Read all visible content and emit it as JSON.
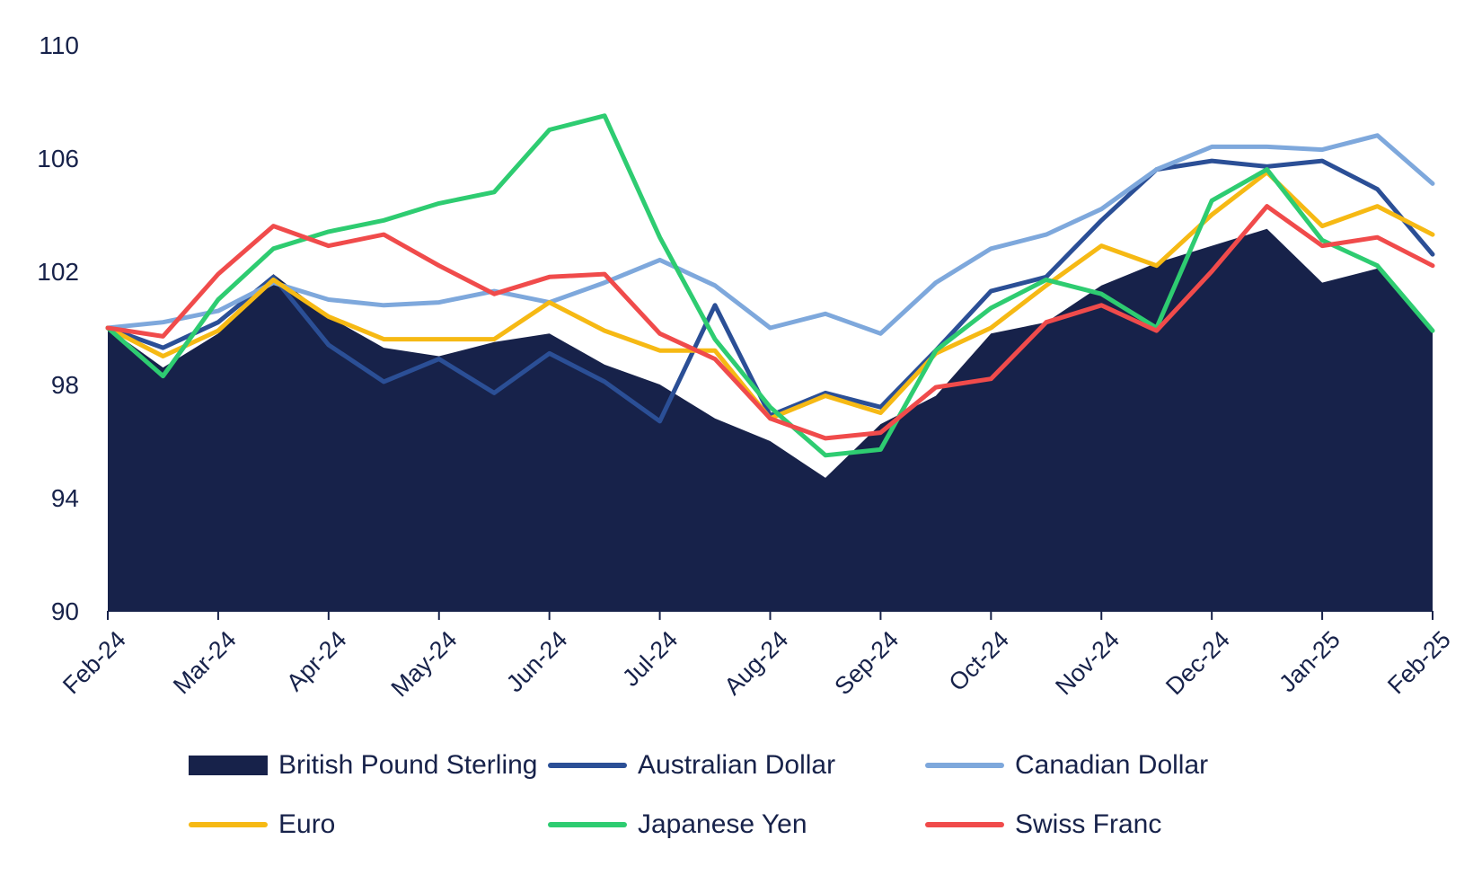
{
  "chart_data": {
    "type": "area+line",
    "title": "",
    "xlabel": "",
    "ylabel": "",
    "ylim": [
      90,
      110
    ],
    "yticks": [
      90,
      94,
      98,
      102,
      106,
      110
    ],
    "xticks": [
      "Feb-24",
      "Mar-24",
      "Apr-24",
      "May-24",
      "Jun-24",
      "Jul-24",
      "Aug-24",
      "Sep-24",
      "Oct-24",
      "Nov-24",
      "Dec-24",
      "Jan-25",
      "Feb-25"
    ],
    "x": [
      0,
      0.5,
      1,
      1.5,
      2,
      2.5,
      3,
      3.5,
      4,
      4.5,
      5,
      5.5,
      6,
      6.5,
      7,
      7.5,
      8,
      8.5,
      9,
      9.5,
      10,
      10.5,
      11,
      11.5,
      12
    ],
    "series": [
      {
        "name": "British Pound Sterling",
        "kind": "area",
        "color": "#17224a",
        "values": [
          100.0,
          98.6,
          99.8,
          101.9,
          100.4,
          99.3,
          99.0,
          99.5,
          99.8,
          98.7,
          98.0,
          96.8,
          96.0,
          94.7,
          96.6,
          97.6,
          99.8,
          100.2,
          101.5,
          102.3,
          102.9,
          103.5,
          101.6,
          102.1,
          100.0
        ]
      },
      {
        "name": "Australian Dollar",
        "kind": "line",
        "color": "#2b4f96",
        "values": [
          100.0,
          99.3,
          100.2,
          101.8,
          99.4,
          98.1,
          98.9,
          97.7,
          99.1,
          98.1,
          96.7,
          100.8,
          96.9,
          97.7,
          97.2,
          99.2,
          101.3,
          101.8,
          103.8,
          105.6,
          105.9,
          105.7,
          105.9,
          104.9,
          102.6
        ]
      },
      {
        "name": "Canadian Dollar",
        "kind": "line",
        "color": "#7ea8dc",
        "values": [
          100.0,
          100.2,
          100.6,
          101.6,
          101.0,
          100.8,
          100.9,
          101.3,
          100.9,
          101.6,
          102.4,
          101.5,
          100.0,
          100.5,
          99.8,
          101.6,
          102.8,
          103.3,
          104.2,
          105.6,
          106.4,
          106.4,
          106.3,
          106.8,
          105.1
        ]
      },
      {
        "name": "Euro",
        "kind": "line",
        "color": "#f6b914",
        "values": [
          100.0,
          99.0,
          99.9,
          101.7,
          100.4,
          99.6,
          99.6,
          99.6,
          100.9,
          99.9,
          99.2,
          99.2,
          96.8,
          97.6,
          97.0,
          99.1,
          100.0,
          101.5,
          102.9,
          102.2,
          104.0,
          105.5,
          103.6,
          104.3,
          103.3
        ]
      },
      {
        "name": "Japanese Yen",
        "kind": "line",
        "color": "#2ecc71",
        "values": [
          100.0,
          98.3,
          101.0,
          102.8,
          103.4,
          103.8,
          104.4,
          104.8,
          107.0,
          107.5,
          103.2,
          99.6,
          97.2,
          95.5,
          95.7,
          99.2,
          100.7,
          101.7,
          101.2,
          100.0,
          104.5,
          105.6,
          103.1,
          102.2,
          99.9
        ]
      },
      {
        "name": "Swiss Franc",
        "kind": "line",
        "color": "#f04b4b",
        "values": [
          100.0,
          99.7,
          101.9,
          103.6,
          102.9,
          103.3,
          102.2,
          101.2,
          101.8,
          101.9,
          99.8,
          98.9,
          96.8,
          96.1,
          96.3,
          97.9,
          98.2,
          100.2,
          100.8,
          99.9,
          102.0,
          104.3,
          102.9,
          103.2,
          102.2
        ]
      }
    ],
    "legend_position": "bottom",
    "grid": false
  }
}
